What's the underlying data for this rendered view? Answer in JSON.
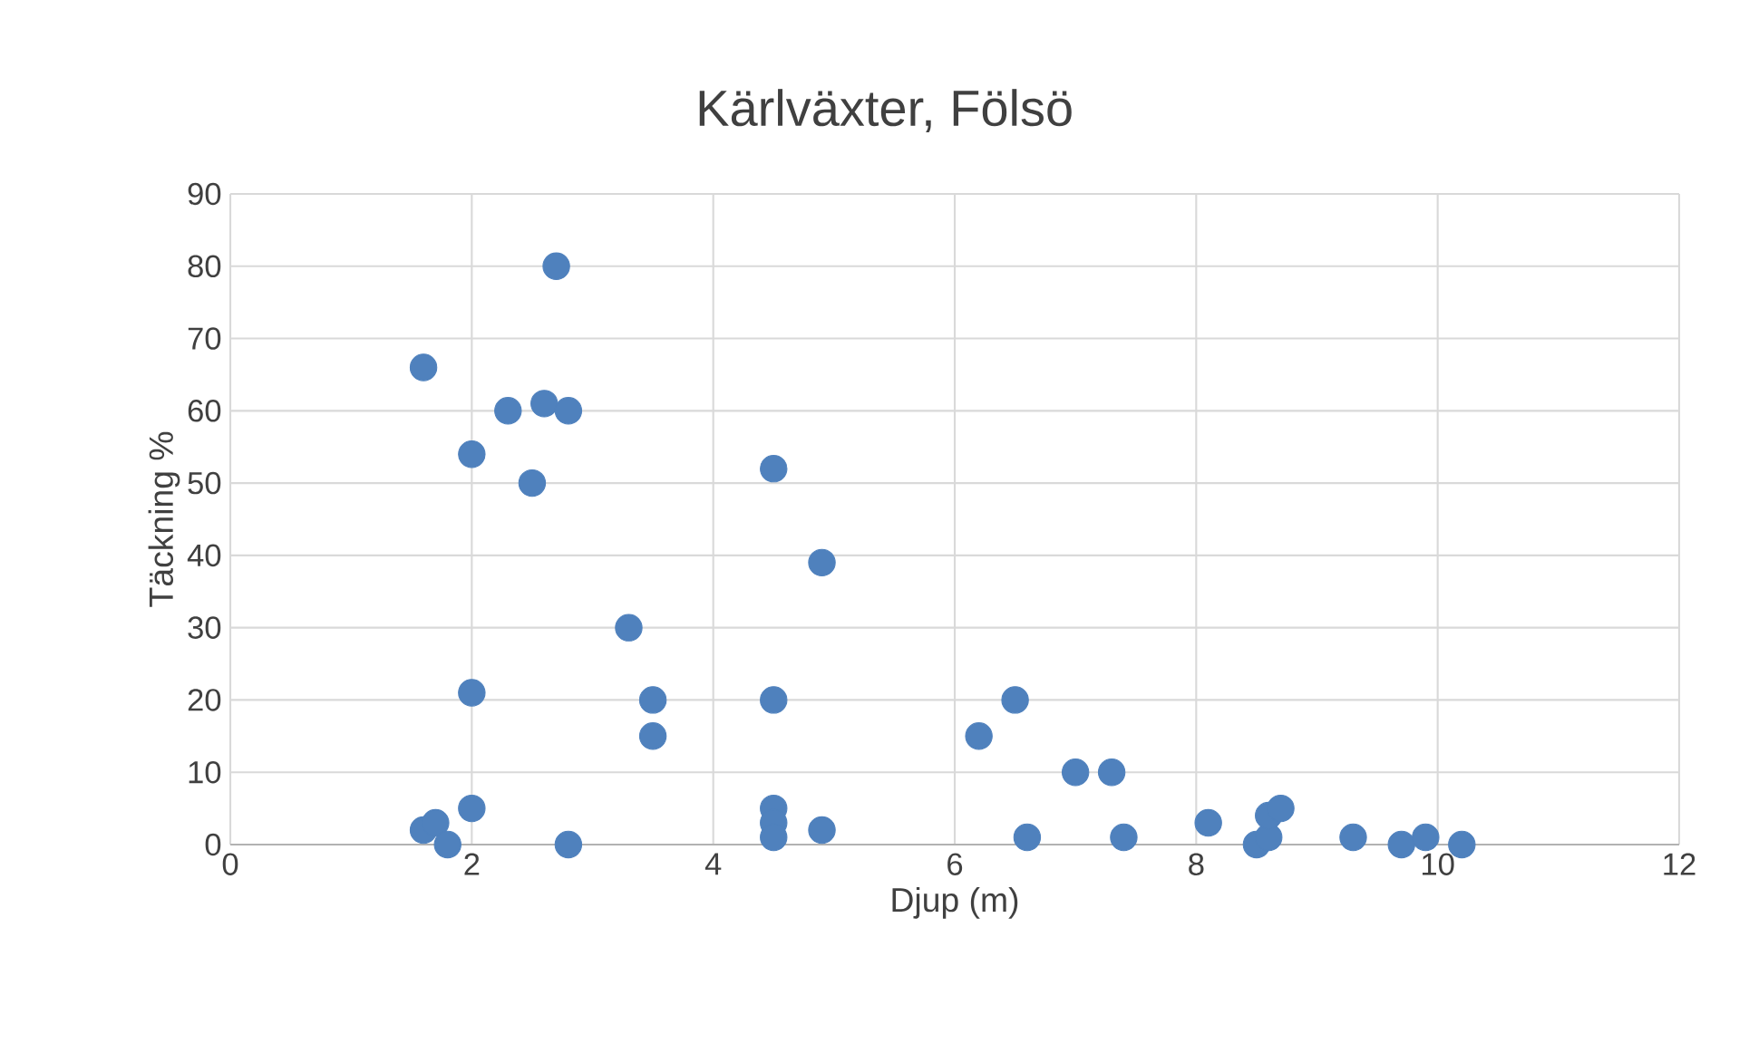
{
  "chart_data": {
    "type": "scatter",
    "title": "Kärlväxter, Fölsö",
    "xlabel": "Djup (m)",
    "ylabel": "Täckning %",
    "x": [
      1.6,
      2.7,
      2.3,
      2.6,
      2.8,
      2.0,
      2.5,
      4.5,
      4.9,
      3.3,
      2.0,
      3.5,
      3.5,
      4.5,
      6.2,
      6.5,
      7.0,
      7.3,
      1.6,
      1.7,
      1.8,
      2.0,
      2.8,
      4.5,
      4.5,
      4.5,
      4.9,
      6.6,
      7.4,
      8.1,
      8.5,
      8.6,
      8.6,
      8.7,
      9.3,
      9.7,
      9.9,
      10.2
    ],
    "values": [
      66,
      80,
      60,
      61,
      60,
      54,
      50,
      52,
      39,
      30,
      21,
      20,
      15,
      20,
      15,
      20,
      10,
      10,
      2,
      3,
      0,
      5,
      0,
      5,
      3,
      1,
      2,
      1,
      1,
      3,
      0,
      1,
      4,
      5,
      1,
      0,
      1,
      0
    ],
    "color": "#4f81bd",
    "xlim": [
      0,
      12
    ],
    "xticks": [
      0,
      2,
      4,
      6,
      8,
      10,
      12
    ],
    "ylim": [
      0,
      90
    ],
    "yticks": [
      0,
      10,
      20,
      30,
      40,
      50,
      60,
      70,
      80,
      90
    ],
    "grid": true
  }
}
